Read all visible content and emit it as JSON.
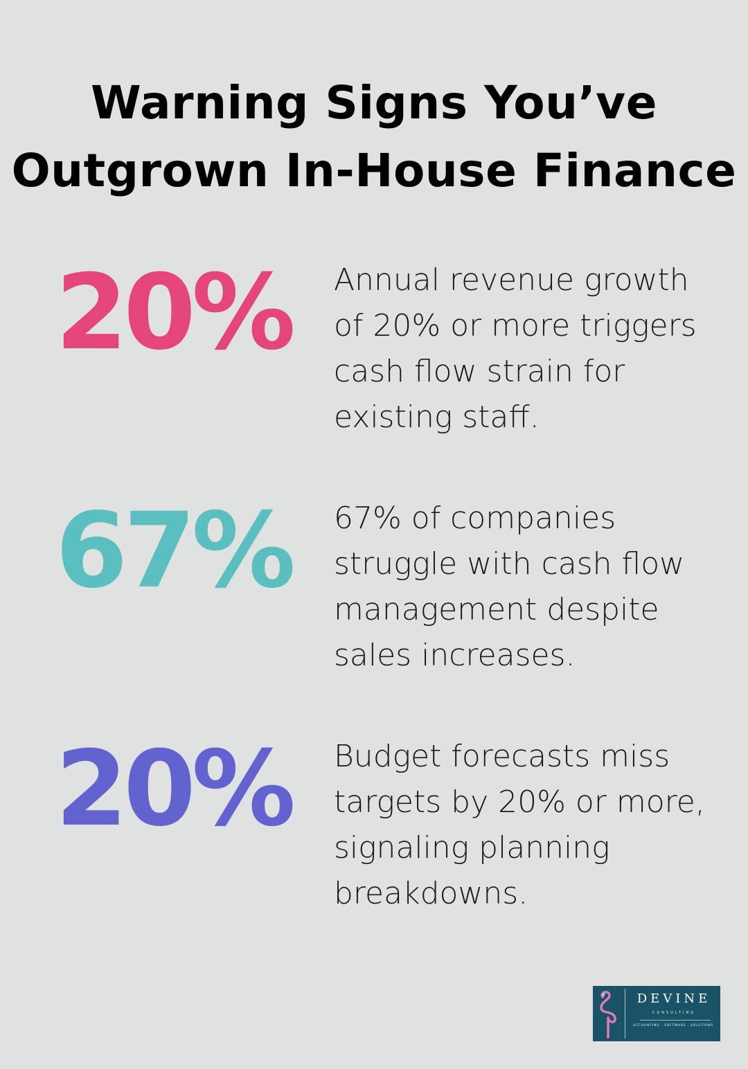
{
  "title_lines": [
    "Warning Signs You’ve",
    "Outgrown In-House Finance"
  ],
  "stats": [
    {
      "value": "20%",
      "color": "#e4457b",
      "description": "Annual revenue growth of 20% or more triggers cash flow strain for existing staff."
    },
    {
      "value": "67%",
      "color": "#5cbfbf",
      "description": "67% of companies struggle with cash flow management despite sales increases."
    },
    {
      "value": "20%",
      "color": "#6363d0",
      "description": "Budget forecasts miss targets by 20% or more, signaling planning breakdowns."
    }
  ],
  "logo": {
    "brand": "DEVINE",
    "sub": "CONSULTING",
    "tagline": "ACCOUNTING · SOFTWARE · SOLUTIONS",
    "icon": "flamingo-icon",
    "background": "#1a5268"
  }
}
